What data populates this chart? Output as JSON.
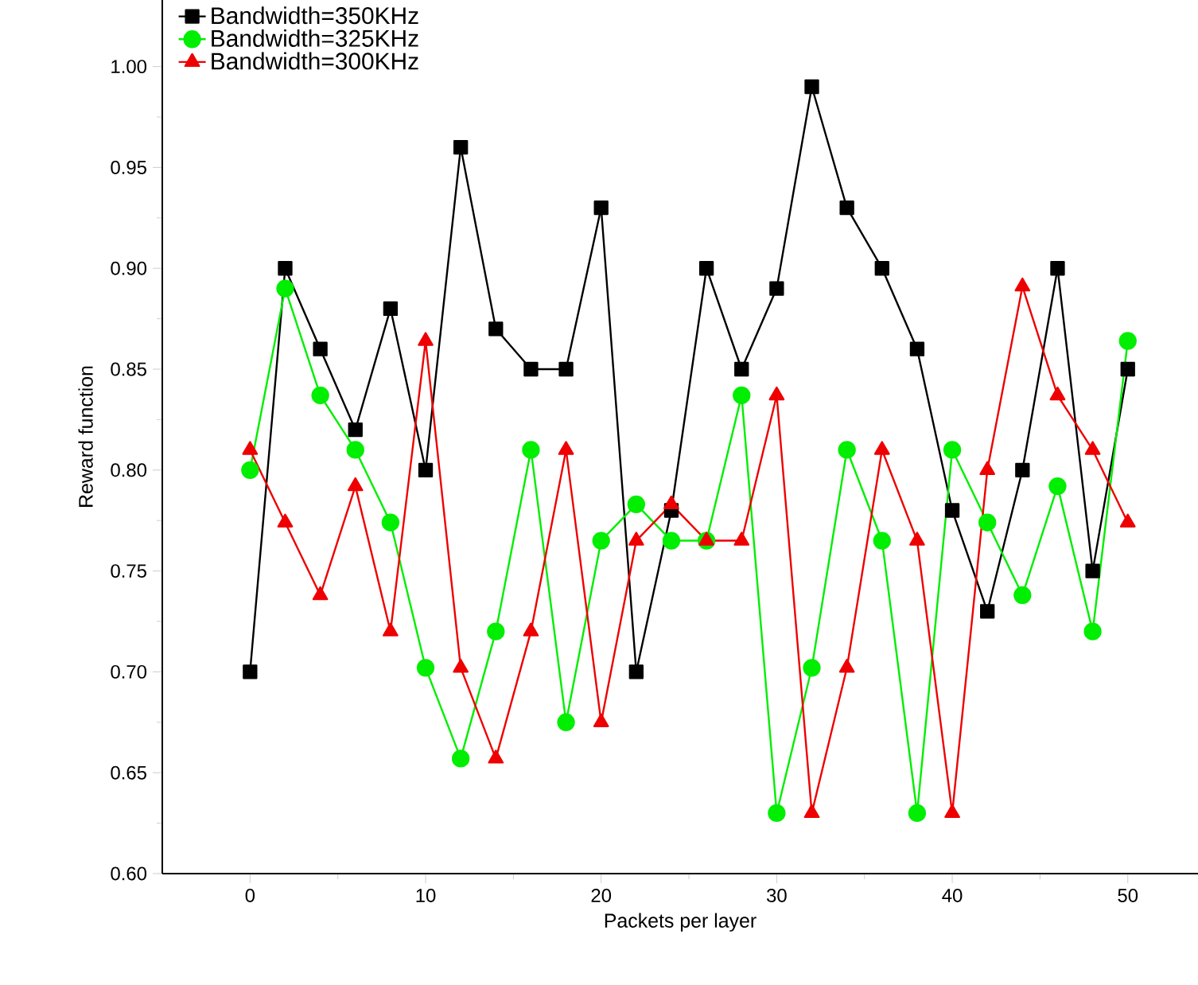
{
  "chart_data": {
    "type": "line",
    "xlabel": "Packets per layer",
    "ylabel": "Reward function",
    "x": [
      0,
      2,
      4,
      6,
      8,
      10,
      12,
      14,
      16,
      18,
      20,
      22,
      24,
      26,
      28,
      30,
      32,
      34,
      36,
      38,
      40,
      42,
      44,
      46,
      48,
      50
    ],
    "series": [
      {
        "name": "Bandwidth=350KHz",
        "color": "#000000",
        "marker": "square",
        "values": [
          0.7,
          0.9,
          0.86,
          0.82,
          0.88,
          0.8,
          0.96,
          0.87,
          0.85,
          0.85,
          0.93,
          0.7,
          0.78,
          0.9,
          0.85,
          0.89,
          0.99,
          0.93,
          0.9,
          0.86,
          0.78,
          0.73,
          0.8,
          0.9,
          0.75,
          0.85
        ]
      },
      {
        "name": "Bandwidth=325KHz",
        "color": "#00ee00",
        "marker": "circle",
        "values": [
          0.8,
          0.89,
          0.837,
          0.81,
          0.774,
          0.702,
          0.657,
          0.72,
          0.81,
          0.675,
          0.765,
          0.783,
          0.765,
          0.765,
          0.837,
          0.63,
          0.702,
          0.81,
          0.765,
          0.63,
          0.81,
          0.774,
          0.738,
          0.792,
          0.72,
          0.864
        ]
      },
      {
        "name": "Bandwidth=300KHz",
        "color": "#ee0000",
        "marker": "triangle",
        "values": [
          0.81,
          0.774,
          0.738,
          0.792,
          0.72,
          0.864,
          0.702,
          0.657,
          0.72,
          0.81,
          0.675,
          0.765,
          0.783,
          0.765,
          0.765,
          0.837,
          0.63,
          0.702,
          0.81,
          0.765,
          0.63,
          0.8,
          0.891,
          0.837,
          0.81,
          0.774
        ]
      }
    ],
    "xlim": [
      -5,
      54
    ],
    "ylim": [
      0.6,
      1.033
    ],
    "xticks": [
      0,
      10,
      20,
      30,
      40,
      50
    ],
    "yticks": [
      {
        "value": 0.6,
        "label": "0.60"
      },
      {
        "value": 0.65,
        "label": "0.65"
      },
      {
        "value": 0.7,
        "label": "0.70"
      },
      {
        "value": 0.75,
        "label": "0.75"
      },
      {
        "value": 0.8,
        "label": "0.80"
      },
      {
        "value": 0.85,
        "label": "0.85"
      },
      {
        "value": 0.9,
        "label": "0.90"
      },
      {
        "value": 0.95,
        "label": "0.95"
      },
      {
        "value": 1.0,
        "label": "1.00"
      }
    ],
    "legend": "top left",
    "line_style": "solid"
  }
}
